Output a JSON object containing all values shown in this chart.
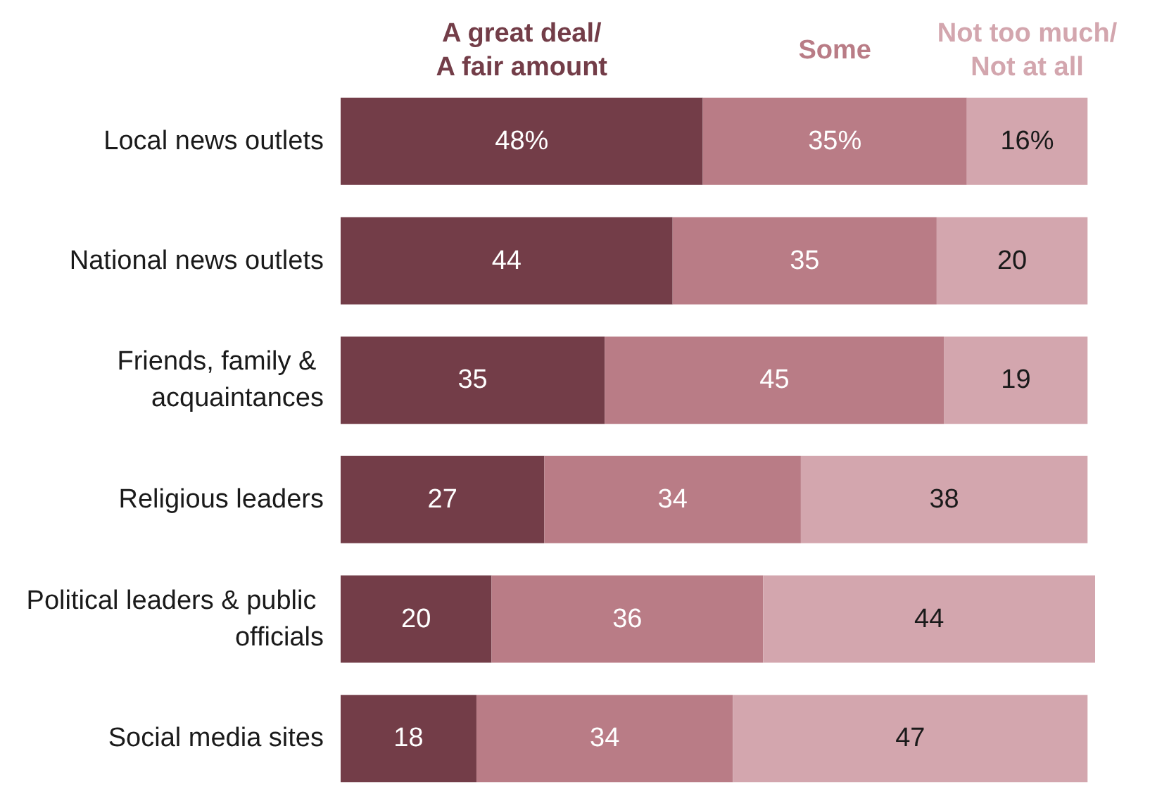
{
  "chart_data": {
    "type": "bar",
    "orientation": "horizontal",
    "stacked": true,
    "data_labels": true,
    "legend": "top",
    "categories": [
      "Local news outlets",
      "National news outlets",
      "Friends, family & acquaintances",
      "Religious leaders",
      "Political leaders & public officials",
      "Social media sites"
    ],
    "series": [
      {
        "name": "A great deal/ A fair amount",
        "color": "#733d48",
        "values": [
          48,
          44,
          35,
          27,
          20,
          18
        ],
        "value_labels": [
          "48%",
          "44",
          "35",
          "27",
          "20",
          "18"
        ]
      },
      {
        "name": "Some",
        "color": "#b97c86",
        "values": [
          35,
          35,
          45,
          34,
          36,
          34
        ],
        "value_labels": [
          "35%",
          "35",
          "45",
          "34",
          "36",
          "34"
        ]
      },
      {
        "name": "Not too much/ Not at all",
        "color": "#d3a6ae",
        "values": [
          16,
          20,
          19,
          38,
          44,
          47
        ],
        "value_labels": [
          "16%",
          "20",
          "19",
          "38",
          "44",
          "47"
        ]
      }
    ]
  }
}
